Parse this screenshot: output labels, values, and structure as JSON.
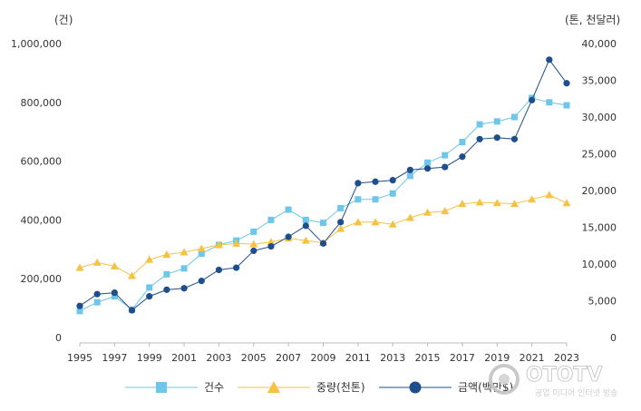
{
  "chart_data": {
    "type": "line",
    "units": {
      "left": "(건)",
      "right": "(톤, 천달러)"
    },
    "x": [
      1995,
      1996,
      1997,
      1998,
      1999,
      2000,
      2001,
      2002,
      2003,
      2004,
      2005,
      2006,
      2007,
      2008,
      2009,
      2010,
      2011,
      2012,
      2013,
      2014,
      2015,
      2016,
      2017,
      2018,
      2019,
      2020,
      2021,
      2022,
      2023
    ],
    "x_tick_labels": [
      "1995",
      "1997",
      "1999",
      "2001",
      "2003",
      "2005",
      "2007",
      "2009",
      "2011",
      "2013",
      "2015",
      "2017",
      "2019",
      "2021",
      "2023"
    ],
    "y_left": {
      "ylim": [
        0,
        1000000
      ],
      "tick_labels": [
        "0",
        "200,000",
        "400,000",
        "600,000",
        "800,000",
        "1,000,000"
      ]
    },
    "y_right": {
      "ylim": [
        0,
        40000
      ],
      "tick_labels": [
        "0",
        "5,000",
        "10,000",
        "15,000",
        "20,000",
        "25,000",
        "30,000",
        "35,000",
        "40,000"
      ]
    },
    "series": [
      {
        "name": "건수",
        "axis": "left",
        "marker": "square",
        "color": "#6ec6ea",
        "values": [
          90000,
          120000,
          140000,
          95000,
          170000,
          215000,
          235000,
          285000,
          315000,
          330000,
          360000,
          400000,
          435000,
          400000,
          390000,
          440000,
          470000,
          470000,
          490000,
          550000,
          595000,
          620000,
          665000,
          725000,
          735000,
          750000,
          815000,
          800000,
          790000
        ]
      },
      {
        "name": "중량(천톤)",
        "axis": "right",
        "marker": "triangle",
        "color": "#f5c242",
        "values": [
          9500,
          10200,
          9700,
          8400,
          10600,
          11300,
          11600,
          12100,
          12600,
          12800,
          12700,
          13000,
          13500,
          13200,
          12900,
          14800,
          15700,
          15700,
          15400,
          16300,
          17000,
          17200,
          18200,
          18400,
          18300,
          18200,
          18800,
          19400,
          18300
        ]
      },
      {
        "name": "금액(백만$)",
        "axis": "right",
        "marker": "circle",
        "color": "#1f4e8c",
        "values": [
          4300,
          5900,
          6100,
          3700,
          5600,
          6500,
          6700,
          7700,
          9200,
          9500,
          11800,
          12400,
          13700,
          15200,
          12800,
          15700,
          21000,
          21200,
          21400,
          22800,
          23000,
          23200,
          24600,
          27000,
          27200,
          27000,
          32300,
          37800,
          34600
        ]
      }
    ],
    "grid": false,
    "legend_position": "bottom"
  },
  "watermark": {
    "title": "OTOTV",
    "subtitle": "공업 미디어 인터넷 방송"
  },
  "icons": {
    "watermark": "ototv-logo-icon"
  }
}
